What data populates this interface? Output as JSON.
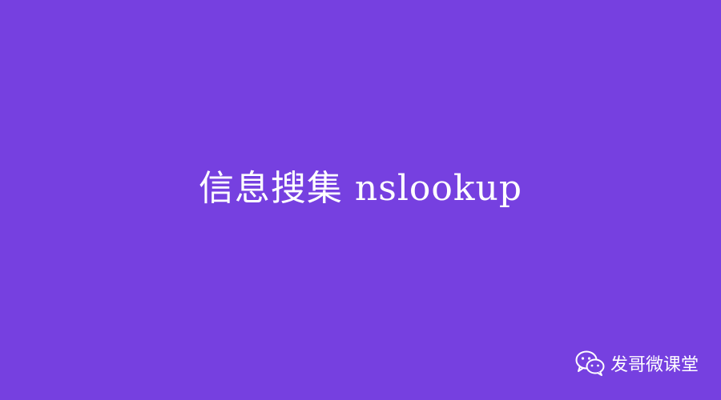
{
  "cover": {
    "title": "信息搜集 nslookup",
    "background_color": "#7640e0",
    "text_color": "#ffffff"
  },
  "watermark": {
    "icon": "wechat-icon",
    "account_name": "发哥微课堂"
  }
}
